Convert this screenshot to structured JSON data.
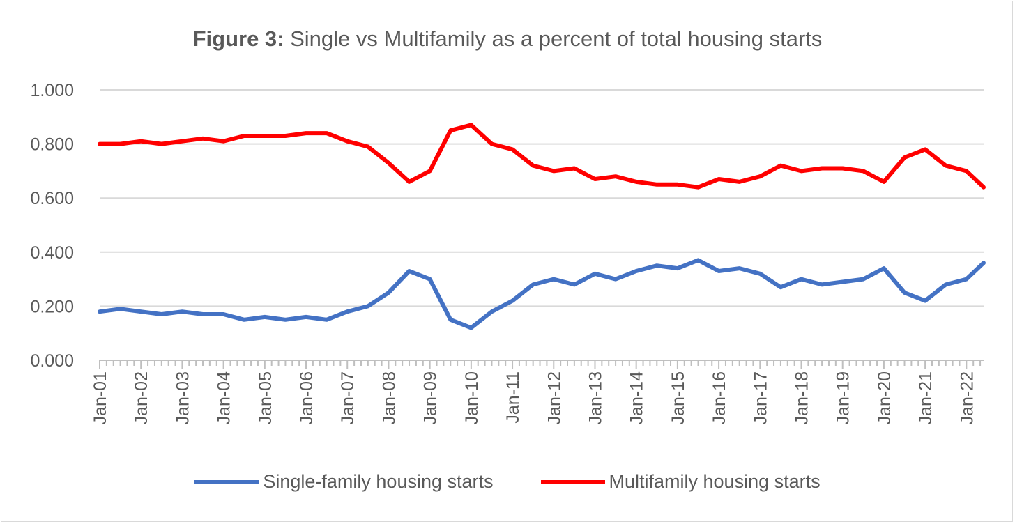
{
  "title": {
    "bold": "Figure 3:",
    "rest": " Single vs Multifamily as a percent of total housing starts"
  },
  "legend": {
    "single": "Single-family housing starts",
    "multi": "Multifamily housing starts"
  },
  "chart_data": {
    "type": "line",
    "title": "Figure 3: Single vs Multifamily as a percent of total housing starts",
    "xlabel": "",
    "ylabel": "",
    "ylim": [
      0,
      1
    ],
    "yticks": [
      "0.000",
      "0.200",
      "0.400",
      "0.600",
      "0.800",
      "1.000"
    ],
    "xticks": [
      "Jan-01",
      "Jan-02",
      "Jan-03",
      "Jan-04",
      "Jan-05",
      "Jan-06",
      "Jan-07",
      "Jan-08",
      "Jan-09",
      "Jan-10",
      "Jan-11",
      "Jan-12",
      "Jan-13",
      "Jan-14",
      "Jan-15",
      "Jan-16",
      "Jan-17",
      "Jan-18",
      "Jan-19",
      "Jan-20",
      "Jan-21",
      "Jan-22"
    ],
    "grid": true,
    "legend_position": "bottom",
    "x_start": "Jan-01",
    "x_end": "Jun-22",
    "series": [
      {
        "name": "Single-family housing starts",
        "color": "#4472c4",
        "x": [
          "Jan-01",
          "Jul-01",
          "Jan-02",
          "Jul-02",
          "Jan-03",
          "Jul-03",
          "Jan-04",
          "Jul-04",
          "Jan-05",
          "Jul-05",
          "Jan-06",
          "Jul-06",
          "Jan-07",
          "Jul-07",
          "Jan-08",
          "Jul-08",
          "Jan-09",
          "Jul-09",
          "Jan-10",
          "Jul-10",
          "Jan-11",
          "Jul-11",
          "Jan-12",
          "Jul-12",
          "Jan-13",
          "Jul-13",
          "Jan-14",
          "Jul-14",
          "Jan-15",
          "Jul-15",
          "Jan-16",
          "Jul-16",
          "Jan-17",
          "Jul-17",
          "Jan-18",
          "Jul-18",
          "Jan-19",
          "Jul-19",
          "Jan-20",
          "Jul-20",
          "Jan-21",
          "Jul-21",
          "Jan-22",
          "Jun-22"
        ],
        "values": [
          0.18,
          0.19,
          0.18,
          0.17,
          0.18,
          0.17,
          0.17,
          0.15,
          0.16,
          0.15,
          0.16,
          0.15,
          0.18,
          0.2,
          0.25,
          0.33,
          0.3,
          0.15,
          0.12,
          0.18,
          0.22,
          0.28,
          0.3,
          0.28,
          0.32,
          0.3,
          0.33,
          0.35,
          0.34,
          0.37,
          0.33,
          0.34,
          0.32,
          0.27,
          0.3,
          0.28,
          0.29,
          0.3,
          0.34,
          0.25,
          0.22,
          0.28,
          0.3,
          0.36
        ]
      },
      {
        "name": "Multifamily housing starts",
        "color": "#ff0000",
        "x": [
          "Jan-01",
          "Jul-01",
          "Jan-02",
          "Jul-02",
          "Jan-03",
          "Jul-03",
          "Jan-04",
          "Jul-04",
          "Jan-05",
          "Jul-05",
          "Jan-06",
          "Jul-06",
          "Jan-07",
          "Jul-07",
          "Jan-08",
          "Jul-08",
          "Jan-09",
          "Jul-09",
          "Jan-10",
          "Jul-10",
          "Jan-11",
          "Jul-11",
          "Jan-12",
          "Jul-12",
          "Jan-13",
          "Jul-13",
          "Jan-14",
          "Jul-14",
          "Jan-15",
          "Jul-15",
          "Jan-16",
          "Jul-16",
          "Jan-17",
          "Jul-17",
          "Jan-18",
          "Jul-18",
          "Jan-19",
          "Jul-19",
          "Jan-20",
          "Jul-20",
          "Jan-21",
          "Jul-21",
          "Jan-22",
          "Jun-22"
        ],
        "values": [
          0.8,
          0.8,
          0.81,
          0.8,
          0.81,
          0.82,
          0.81,
          0.83,
          0.83,
          0.83,
          0.84,
          0.84,
          0.81,
          0.79,
          0.73,
          0.66,
          0.7,
          0.85,
          0.87,
          0.8,
          0.78,
          0.72,
          0.7,
          0.71,
          0.67,
          0.68,
          0.66,
          0.65,
          0.65,
          0.64,
          0.67,
          0.66,
          0.68,
          0.72,
          0.7,
          0.71,
          0.71,
          0.7,
          0.66,
          0.75,
          0.78,
          0.72,
          0.7,
          0.64
        ]
      }
    ]
  }
}
